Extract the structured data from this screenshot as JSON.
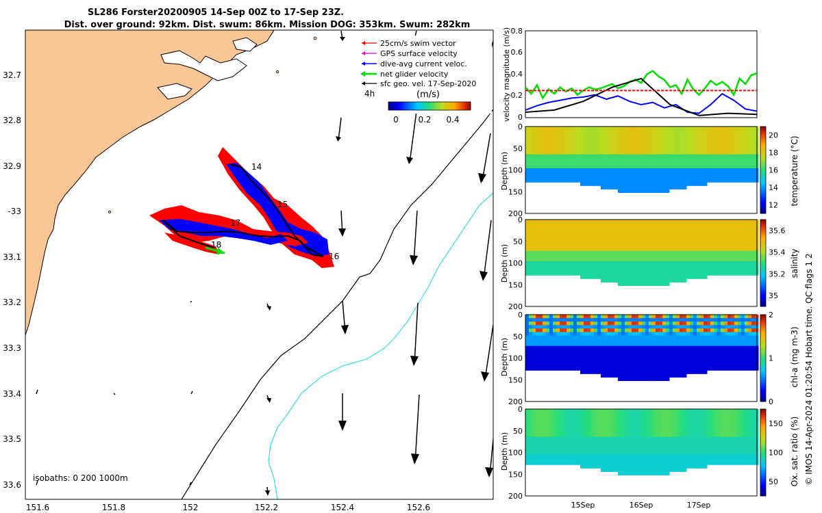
{
  "header": {
    "title_line1": "SL286 Forster20200905 14-Sep 00Z to 17-Sep 23Z.",
    "title_line2": "Dist. over ground: 92km. Dist. swum: 86km. Mission DOG: 353km. Swum: 282km"
  },
  "credit": "© IMOS 14-Apr-2024 01:20:54 Hobart time. QC flags 1  2",
  "map": {
    "legend": {
      "swim": "25cm/s swim vector",
      "gps": "GPS surface velocity",
      "dive": "dive-avg current veloc.",
      "net": "net glider velocity",
      "sfc": "sfc geo. vel. 17-Sep-2020",
      "step": "4h",
      "unit": "(m/s)",
      "ticks": [
        "0",
        "0.2",
        "0.4"
      ]
    },
    "lon_ticks": [
      "151.6",
      "151.8",
      "152",
      "152.2",
      "152.4",
      "152.6"
    ],
    "lat_ticks": [
      "32.7",
      "32.8",
      "32.9",
      "-33",
      "33.1",
      "33.2",
      "33.3",
      "33.4",
      "33.5",
      "33.6"
    ],
    "isobaths_label": "isobaths: 0   200  1000m",
    "day_labels": [
      "14",
      "15",
      "16",
      "17",
      "18"
    ],
    "colors": {
      "land": "#f9c796",
      "swim": "#ff0000",
      "dive": "#0000ff",
      "net": "#00dd00",
      "iso200": "#000000",
      "iso1000": "#33dddd"
    }
  },
  "chart_data": [
    {
      "type": "line",
      "title": "",
      "ylabel": "velocity magnitude (m/s)",
      "ylim": [
        0,
        0.8
      ],
      "yticks": [
        "0",
        "0.2",
        "0.4",
        "0.6",
        "0.8"
      ],
      "x_range_days": [
        14.0,
        18.0
      ],
      "series": [
        {
          "name": "net glider velocity",
          "color": "#00dd00",
          "x": [
            14.0,
            14.1,
            14.2,
            14.3,
            14.4,
            14.5,
            14.6,
            14.7,
            14.8,
            14.9,
            15.0,
            15.1,
            15.2,
            15.3,
            15.4,
            15.5,
            15.6,
            15.7,
            15.8,
            15.9,
            16.0,
            16.1,
            16.2,
            16.3,
            16.4,
            16.5,
            16.6,
            16.7,
            16.8,
            16.9,
            17.0,
            17.1,
            17.2,
            17.3,
            17.4,
            17.5,
            17.6,
            17.7,
            17.8,
            17.9,
            18.0
          ],
          "y": [
            0.28,
            0.22,
            0.3,
            0.18,
            0.26,
            0.22,
            0.28,
            0.24,
            0.27,
            0.21,
            0.25,
            0.28,
            0.26,
            0.27,
            0.29,
            0.31,
            0.27,
            0.29,
            0.33,
            0.35,
            0.32,
            0.4,
            0.43,
            0.38,
            0.35,
            0.28,
            0.3,
            0.22,
            0.35,
            0.26,
            0.21,
            0.27,
            0.34,
            0.3,
            0.33,
            0.29,
            0.21,
            0.36,
            0.31,
            0.39,
            0.41
          ]
        },
        {
          "name": "dive-avg current veloc.",
          "color": "#0000ff",
          "x": [
            14.0,
            14.2,
            14.4,
            14.6,
            14.8,
            15.0,
            15.2,
            15.4,
            15.6,
            15.8,
            16.0,
            16.2,
            16.4,
            16.6,
            16.8,
            17.0,
            17.2,
            17.4,
            17.6,
            17.8,
            18.0
          ],
          "y": [
            0.07,
            0.11,
            0.14,
            0.16,
            0.18,
            0.19,
            0.21,
            0.17,
            0.2,
            0.15,
            0.12,
            0.14,
            0.09,
            0.12,
            0.05,
            0.04,
            0.12,
            0.22,
            0.16,
            0.08,
            0.06
          ]
        },
        {
          "name": "sfc geo. vel.",
          "color": "#000000",
          "x": [
            14.0,
            14.5,
            15.0,
            15.5,
            16.0,
            16.5,
            17.0,
            17.5,
            18.0
          ],
          "y": [
            0.05,
            0.07,
            0.15,
            0.28,
            0.36,
            0.12,
            0.02,
            0.04,
            0.03
          ]
        },
        {
          "name": "25cm/s swim vector",
          "color": "#ff0000",
          "x": [
            14.0,
            18.0
          ],
          "y": [
            0.25,
            0.25
          ]
        }
      ]
    },
    {
      "type": "heatmap",
      "ylabel": "Depth (m)",
      "cbar_label": "temperature (°C)",
      "cbar_ticks": [
        "12",
        "14",
        "16",
        "18",
        "20"
      ],
      "clim": [
        11,
        21
      ],
      "ylim": [
        200,
        0
      ],
      "yticks": [
        "0",
        "50",
        "100",
        "150",
        "200"
      ],
      "xticks": [
        "15Sep",
        "16Sep",
        "17Sep"
      ]
    },
    {
      "type": "heatmap",
      "ylabel": "Depth (m)",
      "cbar_label": "salinity",
      "cbar_ticks": [
        "35",
        "35.2",
        "35.4",
        "35.6"
      ],
      "clim": [
        34.9,
        35.7
      ],
      "ylim": [
        200,
        0
      ],
      "yticks": [
        "0",
        "50",
        "100",
        "150",
        "200"
      ],
      "xticks": [
        "15Sep",
        "16Sep",
        "17Sep"
      ]
    },
    {
      "type": "heatmap",
      "ylabel": "Depth (m)",
      "cbar_label": "chl-a (mg m-3)",
      "cbar_ticks": [
        "0",
        "1",
        "2"
      ],
      "clim": [
        0,
        2
      ],
      "ylim": [
        200,
        0
      ],
      "yticks": [
        "0",
        "50",
        "100",
        "150",
        "200"
      ],
      "xticks": [
        "15Sep",
        "16Sep",
        "17Sep"
      ]
    },
    {
      "type": "heatmap",
      "ylabel": "Depth (m)",
      "cbar_label": "Ox. sat. ratio (%)",
      "cbar_ticks": [
        "50",
        "100",
        "150"
      ],
      "clim": [
        25,
        175
      ],
      "ylim": [
        200,
        0
      ],
      "yticks": [
        "0",
        "50",
        "100",
        "150",
        "200"
      ],
      "xticks": [
        "15Sep",
        "16Sep",
        "17Sep"
      ]
    }
  ]
}
